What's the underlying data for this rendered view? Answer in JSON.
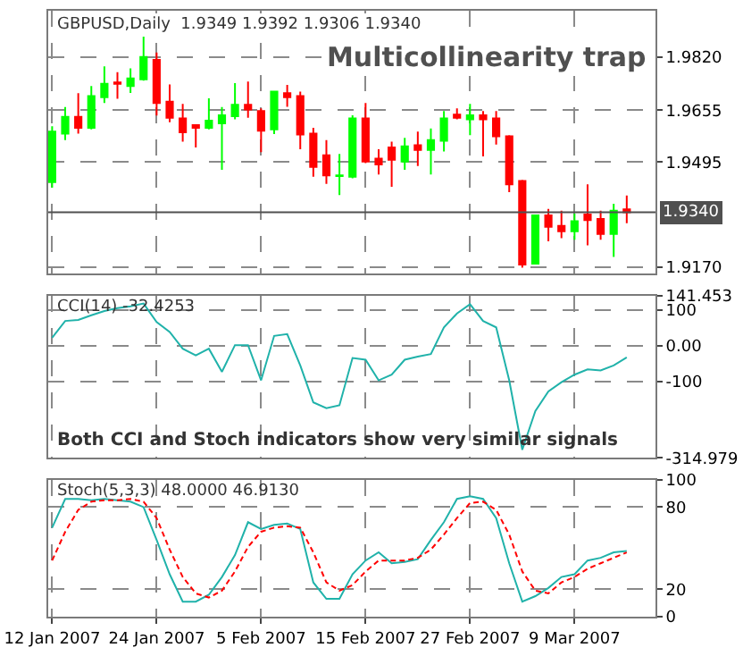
{
  "chart_data": [
    {
      "type": "candlestick",
      "title": "Multicollinearity trap",
      "subtitle": "GBPUSD,Daily  1.9349 1.9392 1.9306 1.9340",
      "ohlc": [
        [
          1.9433,
          1.9606,
          1.9416,
          1.9589
        ],
        [
          1.9583,
          1.9665,
          1.9563,
          1.9635
        ],
        [
          1.9635,
          1.9708,
          1.9583,
          1.9601
        ],
        [
          1.9601,
          1.973,
          1.9596,
          1.9699
        ],
        [
          1.9696,
          1.9791,
          1.9678,
          1.9737
        ],
        [
          1.9741,
          1.9773,
          1.9691,
          1.9737
        ],
        [
          1.973,
          1.9785,
          1.9709,
          1.9754
        ],
        [
          1.9751,
          1.9889,
          1.9747,
          1.982
        ],
        [
          1.9811,
          1.9834,
          1.9639,
          1.9678
        ],
        [
          1.9682,
          1.9735,
          1.9618,
          1.9632
        ],
        [
          1.963,
          1.9675,
          1.9558,
          1.9587
        ],
        [
          1.9609,
          1.9609,
          1.954,
          1.9601
        ],
        [
          1.9601,
          1.9692,
          1.9596,
          1.9623
        ],
        [
          1.9615,
          1.9665,
          1.9471,
          1.964
        ],
        [
          1.9637,
          1.9739,
          1.9627,
          1.9672
        ],
        [
          1.9672,
          1.9744,
          1.9632,
          1.9658
        ],
        [
          1.9653,
          1.9661,
          1.9526,
          1.9592
        ],
        [
          1.9596,
          1.9716,
          1.9582,
          1.9713
        ],
        [
          1.9708,
          1.9734,
          1.9666,
          1.9696
        ],
        [
          1.9699,
          1.9713,
          1.9535,
          1.958
        ],
        [
          1.9583,
          1.9601,
          1.945,
          1.948
        ],
        [
          1.9516,
          1.9563,
          1.9428,
          1.9454
        ],
        [
          1.9452,
          1.952,
          1.9393,
          1.9454
        ],
        [
          1.945,
          1.964,
          1.9445,
          1.963
        ],
        [
          1.963,
          1.9678,
          1.9492,
          1.9497
        ],
        [
          1.9506,
          1.9535,
          1.9457,
          1.9488
        ],
        [
          1.954,
          1.9558,
          1.9419,
          1.9502
        ],
        [
          1.9497,
          1.957,
          1.9471,
          1.9544
        ],
        [
          1.9547,
          1.9589,
          1.9483,
          1.9533
        ],
        [
          1.9533,
          1.9599,
          1.9457,
          1.9563
        ],
        [
          1.9561,
          1.9653,
          1.9528,
          1.963
        ],
        [
          1.9642,
          1.9661,
          1.9627,
          1.9632
        ],
        [
          1.9627,
          1.9675,
          1.9578,
          1.964
        ],
        [
          1.964,
          1.9653,
          1.9513,
          1.9627
        ],
        [
          1.963,
          1.9653,
          1.9549,
          1.9575
        ],
        [
          1.9575,
          1.9578,
          1.9402,
          1.9426
        ],
        [
          1.9437,
          1.944,
          1.9169,
          1.9178
        ],
        [
          1.9181,
          1.9333,
          1.9178,
          1.933
        ],
        [
          1.933,
          1.935,
          1.925,
          1.9295
        ],
        [
          1.9298,
          1.9345,
          1.926,
          1.9281
        ],
        [
          1.9281,
          1.9336,
          1.9255,
          1.9312
        ],
        [
          1.9333,
          1.9426,
          1.9238,
          1.9316
        ],
        [
          1.9319,
          1.9345,
          1.9255,
          1.9273
        ],
        [
          1.9273,
          1.9366,
          1.9202,
          1.9345
        ],
        [
          1.9349,
          1.9392,
          1.9306,
          1.934
        ]
      ],
      "colors": [
        "#00ff00",
        "#00ff00",
        "#ff0000",
        "#00ff00",
        "#00ff00",
        "#ff0000",
        "#00ff00",
        "#00ff00",
        "#ff0000",
        "#ff0000",
        "#ff0000",
        "#ff0000",
        "#00ff00",
        "#00ff00",
        "#00ff00",
        "#ff0000",
        "#ff0000",
        "#00ff00",
        "#ff0000",
        "#ff0000",
        "#ff0000",
        "#ff0000",
        "#00ff00",
        "#00ff00",
        "#ff0000",
        "#ff0000",
        "#ff0000",
        "#00ff00",
        "#ff0000",
        "#00ff00",
        "#00ff00",
        "#ff0000",
        "#00ff00",
        "#ff0000",
        "#ff0000",
        "#ff0000",
        "#ff0000",
        "#00ff00",
        "#ff0000",
        "#ff0000",
        "#00ff00",
        "#ff0000",
        "#ff0000",
        "#00ff00",
        "#ff0000"
      ],
      "ylim": [
        1.915,
        1.9963
      ],
      "yticks": [
        {
          "value": 1.982,
          "label": "1.9820"
        },
        1.9655,
        1.9495,
        {
          "value": 1.917,
          "label": "1.9170"
        }
      ],
      "ref_lines": [
        {
          "axis": "y",
          "value": 1.934,
          "label": "1.9340",
          "color": "#505050"
        }
      ],
      "grid": true,
      "tick_labels": "y"
    },
    {
      "type": "line",
      "title": "CCI(14) -32.4253",
      "series": [
        {
          "color": "#20b2aa",
          "values": [
            23,
            70,
            73,
            86,
            98,
            106,
            111,
            119,
            67,
            39,
            -8,
            -27,
            -8,
            -73,
            2,
            2,
            -97,
            28,
            33,
            -55,
            -159,
            -175,
            -167,
            -34,
            -39,
            -97,
            -81,
            -39,
            -30,
            -23,
            52,
            91,
            117,
            70,
            52,
            -97,
            -292,
            -183,
            -128,
            -102,
            -81,
            -66,
            -69,
            -55,
            -32.4253
          ]
        }
      ],
      "annotations": [
        "Both CCI and Stoch indicators show very similar signals"
      ],
      "ylim": [
        -314.979,
        141.453
      ],
      "yticks": [
        141.453,
        100,
        {
          "value": 0,
          "label": "0.00"
        },
        -100,
        -314.979
      ],
      "grid": true,
      "tick_labels": "y"
    },
    {
      "type": "line",
      "title": "Stoch(5,3,3) 48.0000 46.9130",
      "categories": [
        "12 Jan 2007",
        null,
        null,
        null,
        null,
        null,
        null,
        null,
        "24 Jan 2007",
        null,
        null,
        null,
        null,
        null,
        null,
        null,
        "5 Feb 2007",
        null,
        null,
        null,
        null,
        null,
        null,
        null,
        "15 Feb 2007",
        null,
        null,
        null,
        null,
        null,
        null,
        null,
        "27 Feb 2007",
        null,
        null,
        null,
        null,
        null,
        null,
        null,
        "9 Mar 2007",
        null,
        null,
        null,
        null
      ],
      "series": [
        {
          "color": "#20b2aa",
          "line_style": "solid",
          "values": [
            65,
            86,
            86,
            85,
            86,
            85,
            84,
            80,
            56,
            31,
            11,
            11,
            16,
            29,
            45,
            69,
            64,
            67,
            68,
            64,
            25,
            13,
            13,
            31,
            41,
            47,
            39,
            40,
            42,
            56,
            69,
            86,
            88,
            86,
            72,
            39,
            11,
            15,
            21,
            29,
            31,
            41,
            43,
            47,
            48.0
          ]
        },
        {
          "color": "#ff0000",
          "line_style": "dashed",
          "values": [
            41,
            62,
            78,
            84,
            85,
            85,
            86,
            84,
            72,
            49,
            29,
            17,
            14,
            19,
            33,
            51,
            62,
            65,
            66,
            65,
            47,
            25,
            19,
            23,
            33,
            41,
            41,
            41,
            43,
            49,
            60,
            72,
            83,
            84,
            78,
            60,
            33,
            19,
            17,
            25,
            29,
            35,
            39,
            43,
            46.913
          ]
        }
      ],
      "ylim": [
        0,
        100
      ],
      "yticks": [
        100,
        80,
        20,
        0
      ],
      "grid": true
    }
  ]
}
